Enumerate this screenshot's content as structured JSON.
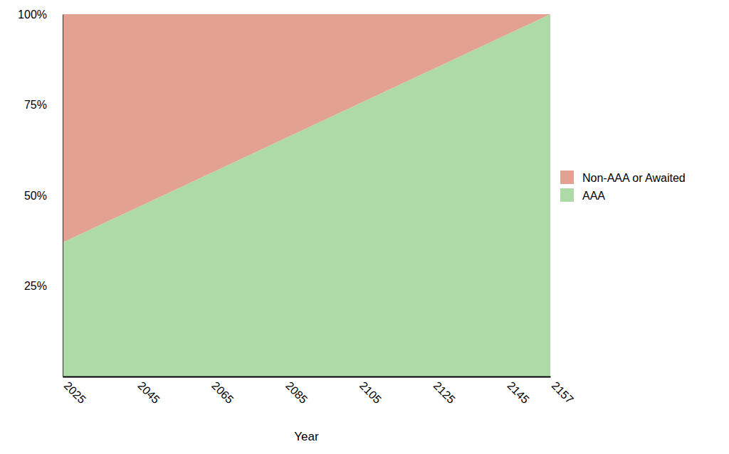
{
  "chart_data": {
    "type": "area",
    "stacked": true,
    "grid": false,
    "legend": "right",
    "x_label": "Year",
    "x": [
      2025,
      2157
    ],
    "xlim": [
      2025,
      2157
    ],
    "xticks": [
      2025,
      2045,
      2065,
      2085,
      2105,
      2125,
      2145,
      2157
    ],
    "ylim": [
      0,
      100
    ],
    "yticks": [
      {
        "value": 25,
        "label": "25%"
      },
      {
        "value": 50,
        "label": "50%"
      },
      {
        "value": 75,
        "label": "75%"
      },
      {
        "value": 100,
        "label": "100%"
      }
    ],
    "series": [
      {
        "name": "AAA",
        "color": "#addaa7",
        "values": [
          37,
          100
        ]
      },
      {
        "name": "Non-AAA or Awaited",
        "color": "#e3a291",
        "values": [
          63,
          0
        ]
      }
    ]
  }
}
